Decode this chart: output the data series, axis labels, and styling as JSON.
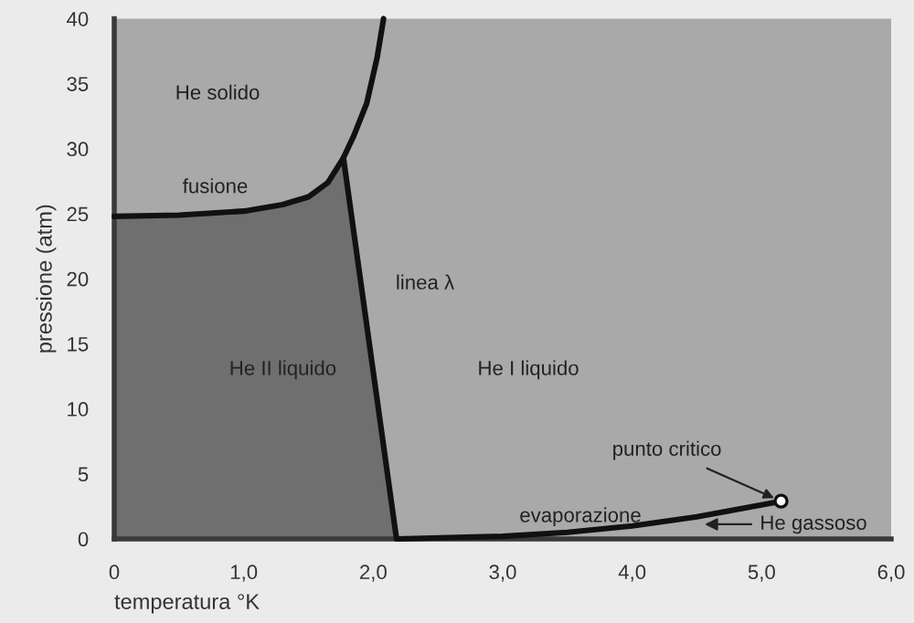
{
  "chart_data": {
    "type": "line",
    "xlabel": "temperatura °K",
    "ylabel": "pressione (atm)",
    "xlim": [
      0,
      6
    ],
    "ylim": [
      0,
      40
    ],
    "xticks": [
      0,
      {
        "value": 1,
        "label": "1,0"
      },
      {
        "value": 2,
        "label": "2,0"
      },
      {
        "value": 3,
        "label": "3,0"
      },
      {
        "value": 4,
        "label": "4,0"
      },
      {
        "value": 5,
        "label": "5,0"
      },
      {
        "value": 6,
        "label": "6,0"
      }
    ],
    "yticks": [
      0,
      5,
      10,
      15,
      20,
      25,
      30,
      35,
      40
    ],
    "grid": false,
    "legend": false,
    "series": [
      {
        "type": "area",
        "color": "#6f6f6f",
        "x": [
          0,
          0.5,
          1.0,
          1.3,
          1.5,
          1.65,
          1.77,
          2.18
        ],
        "values": [
          24.8,
          24.9,
          25.2,
          25.7,
          26.3,
          27.4,
          29.3,
          0
        ]
      },
      {
        "type": "line",
        "color": "#111111",
        "x": [
          0,
          0.5,
          1.0,
          1.3,
          1.5,
          1.65,
          1.77,
          1.85,
          1.95,
          2.03,
          2.08
        ],
        "values": [
          24.8,
          24.9,
          25.2,
          25.7,
          26.3,
          27.4,
          29.3,
          31.0,
          33.5,
          37.0,
          40.0
        ]
      },
      {
        "color": "#111111",
        "x": [
          1.77,
          2.18,
          3.0,
          3.5,
          4.0,
          4.5,
          5.15
        ],
        "values": [
          29.3,
          0,
          0.2,
          0.5,
          1.0,
          1.7,
          2.9
        ]
      },
      {
        "type": "scatter",
        "color": "#ffffff",
        "x": [
          5.15
        ],
        "values": [
          2.9
        ]
      }
    ],
    "annotations": [
      "He solido",
      "fusione",
      "He II liquido",
      "linea λ",
      "He I liquido",
      {
        "text": "punto critico",
        "x": 5.15,
        "y": 2.9
      },
      "evaporazione",
      "He gassoso"
    ]
  }
}
